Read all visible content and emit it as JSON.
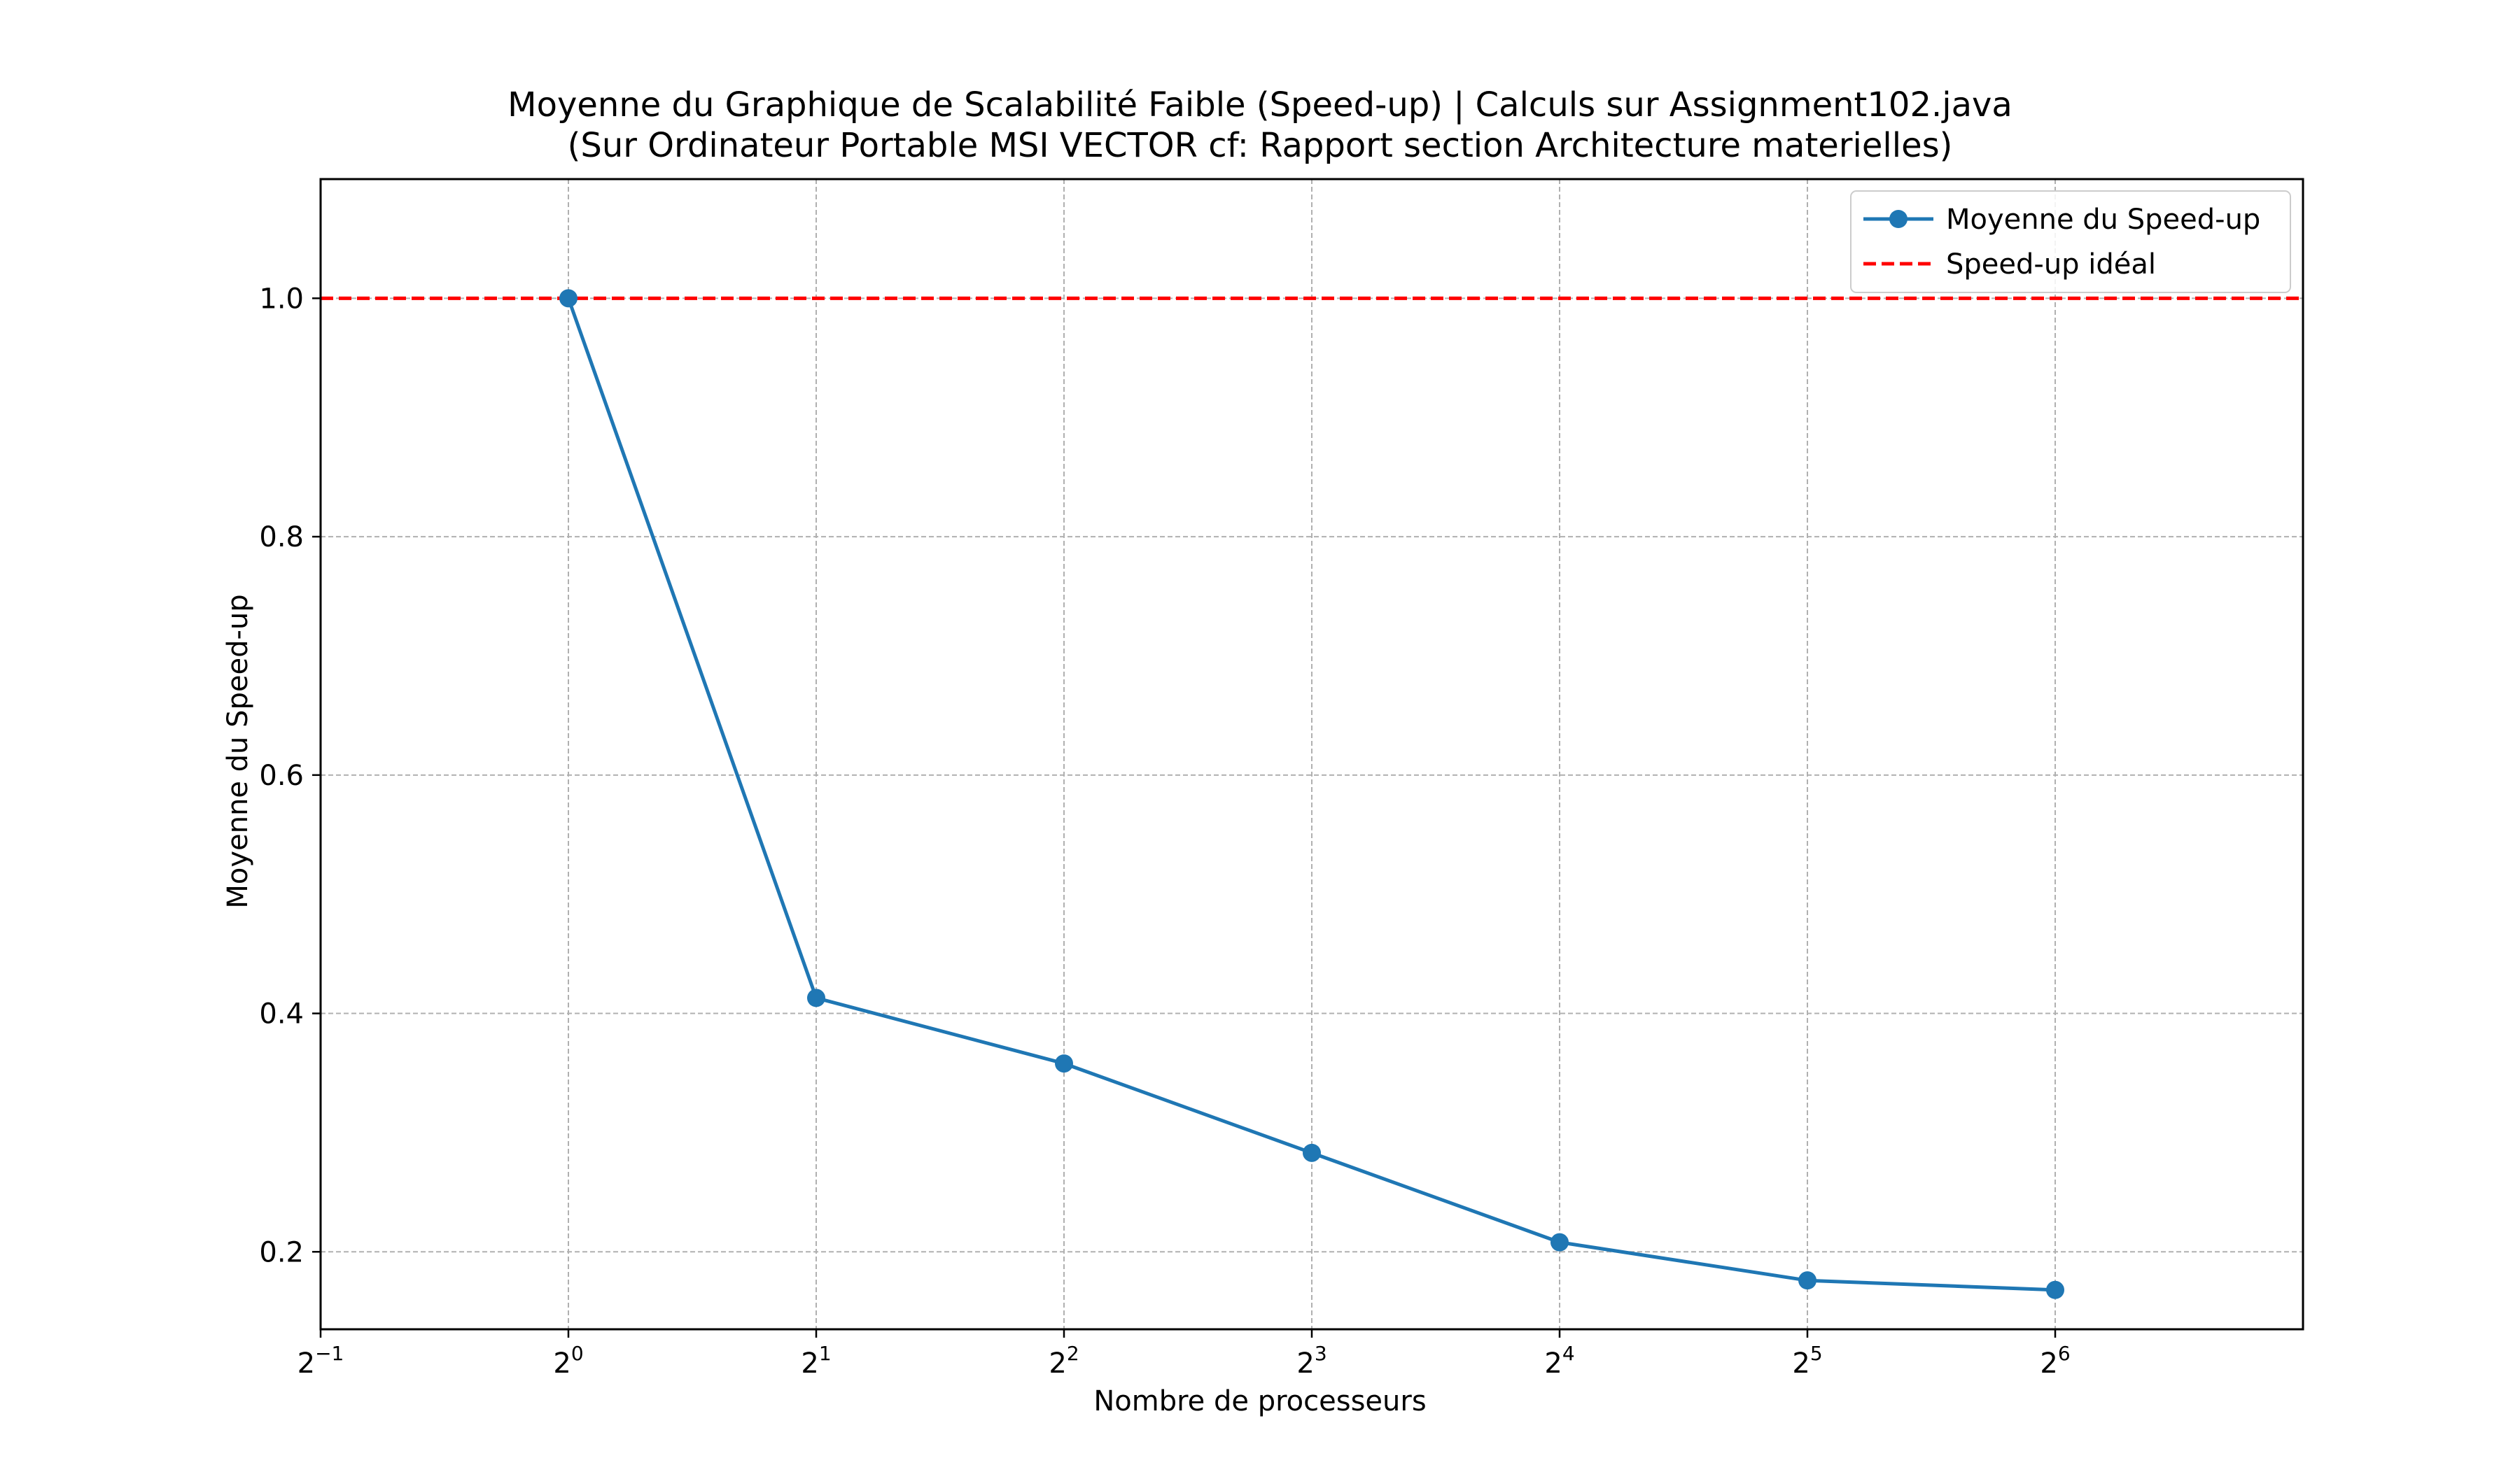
{
  "chart_data": {
    "type": "line",
    "title_lines": [
      "Moyenne du Graphique de Scalabilité Faible (Speed-up) | Calculs sur Assignment102.java",
      "(Sur Ordinateur Portable MSI VECTOR cf: Rapport section Architecture materielles)"
    ],
    "xlabel": "Nombre de processeurs",
    "ylabel": "Moyenne du Speed-up",
    "x_scale": "log2",
    "xlim": [
      0.5,
      128
    ],
    "ylim": [
      0.135,
      1.1
    ],
    "grid": true,
    "legend_position": "top-right",
    "x_ticks": [
      {
        "value": 0.5,
        "base": "2",
        "exp": "−1"
      },
      {
        "value": 1,
        "base": "2",
        "exp": "0"
      },
      {
        "value": 2,
        "base": "2",
        "exp": "1"
      },
      {
        "value": 4,
        "base": "2",
        "exp": "2"
      },
      {
        "value": 8,
        "base": "2",
        "exp": "3"
      },
      {
        "value": 16,
        "base": "2",
        "exp": "4"
      },
      {
        "value": 32,
        "base": "2",
        "exp": "5"
      },
      {
        "value": 64,
        "base": "2",
        "exp": "6"
      }
    ],
    "y_ticks": [
      0.2,
      0.4,
      0.6,
      0.8,
      1.0
    ],
    "y_tick_labels": [
      "0.2",
      "0.4",
      "0.6",
      "0.8",
      "1.0"
    ],
    "series": [
      {
        "name": "Moyenne du Speed-up",
        "color": "#1f77b4",
        "style": "solid-with-markers",
        "x": [
          1,
          2,
          4,
          8,
          16,
          32,
          64
        ],
        "y": [
          1.0,
          0.413,
          0.358,
          0.283,
          0.208,
          0.176,
          0.168
        ]
      },
      {
        "name": "Speed-up idéal",
        "color": "#ff0000",
        "style": "dashed-horizontal",
        "y": 1.0
      }
    ]
  }
}
